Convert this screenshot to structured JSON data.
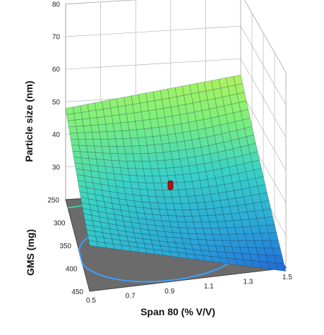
{
  "chart_data": {
    "type": "surface",
    "title": "",
    "xlabel": "Span 80 (% V/V)",
    "ylabel": "GMS (mg)",
    "zlabel": "Particle size (nm)",
    "x_ticks": [
      "0.5",
      "0.7",
      "0.9",
      "1.1",
      "1.3",
      "1.5"
    ],
    "y_ticks": [
      "250",
      "300",
      "350",
      "400",
      "450"
    ],
    "z_ticks": [
      "30",
      "40",
      "50",
      "60",
      "70",
      "80"
    ],
    "x_range": [
      0.5,
      1.5
    ],
    "y_range": [
      250,
      450
    ],
    "z_range": [
      20,
      80
    ],
    "grid": true,
    "floor_contour_color": "#3aa0ff",
    "floor_color": "#6b6b6b",
    "colormap": [
      "#1f5fd6",
      "#2aa6d8",
      "#38d2c6",
      "#7ef07a",
      "#b5f35a"
    ],
    "design_point": {
      "x": 1.0,
      "y": 350,
      "z": 30,
      "color": "#b31212"
    },
    "surface_grid": {
      "x": [
        0.5,
        0.6,
        0.7,
        0.8,
        0.9,
        1.0,
        1.1,
        1.2,
        1.3,
        1.4,
        1.5
      ],
      "y": [
        250,
        270,
        290,
        310,
        330,
        350,
        370,
        390,
        410,
        430,
        450
      ],
      "z_corners": {
        "x0.5_y250": 47,
        "x1.5_y250": 54,
        "x0.5_y450": 33,
        "x1.5_y450": 18
      }
    }
  }
}
